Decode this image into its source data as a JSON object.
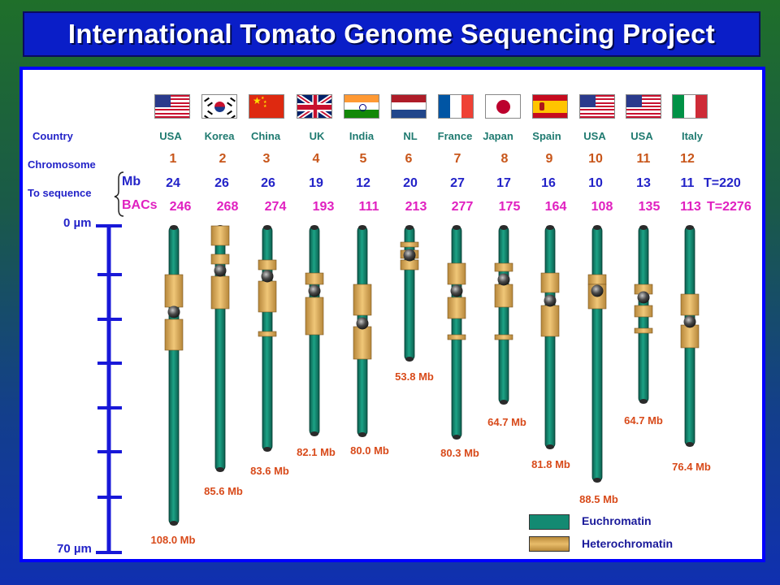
{
  "title": "International Tomato Genome Sequencing Project",
  "row_labels": {
    "country": "Country",
    "chromosome": "Chromosome",
    "to_sequence": "To sequence",
    "mb": "Mb",
    "bacs": "BACs"
  },
  "scale": {
    "top_label": "0 µm",
    "bottom_label": "70 µm",
    "max_um": 70,
    "tick_count": 7
  },
  "legend": {
    "euchromatin": "Euchromatin",
    "heterochromatin": "Heterochromatin"
  },
  "colors": {
    "euchromatin": "#138a72",
    "heterochromatin": "#d9a54f",
    "centromere": "#3a3a3a",
    "scale": "#1818d8"
  },
  "totals": {
    "mb": "T=220",
    "bacs": "T=2276"
  },
  "chromosomes": [
    {
      "country": "USA",
      "flag": "usa-flag",
      "number": "1",
      "mb": "24",
      "bacs": "246",
      "size": "108.0 Mb"
    },
    {
      "country": "Korea",
      "flag": "korea-flag",
      "number": "2",
      "mb": "26",
      "bacs": "268",
      "size": "85.6 Mb"
    },
    {
      "country": "China",
      "flag": "china-flag",
      "number": "3",
      "mb": "26",
      "bacs": "274",
      "size": "83.6 Mb"
    },
    {
      "country": "UK",
      "flag": "uk-flag",
      "number": "4",
      "mb": "19",
      "bacs": "193",
      "size": "82.1 Mb"
    },
    {
      "country": "India",
      "flag": "india-flag",
      "number": "5",
      "mb": "12",
      "bacs": "111",
      "size": "80.0 Mb"
    },
    {
      "country": "NL",
      "flag": "nl-flag",
      "number": "6",
      "mb": "20",
      "bacs": "213",
      "size": "53.8 Mb"
    },
    {
      "country": "France",
      "flag": "france-flag",
      "number": "7",
      "mb": "27",
      "bacs": "277",
      "size": "80.3 Mb"
    },
    {
      "country": "Japan",
      "flag": "japan-flag",
      "number": "8",
      "mb": "17",
      "bacs": "175",
      "size": "64.7 Mb"
    },
    {
      "country": "Spain",
      "flag": "spain-flag",
      "number": "9",
      "mb": "16",
      "bacs": "164",
      "size": "81.8 Mb"
    },
    {
      "country": "USA",
      "flag": "usa-flag",
      "number": "10",
      "mb": "10",
      "bacs": "108",
      "size": "88.5 Mb"
    },
    {
      "country": "USA",
      "flag": "usa-flag",
      "number": "11",
      "mb": "13",
      "bacs": "135",
      "size": "64.7 Mb"
    },
    {
      "country": "Italy",
      "flag": "italy-flag",
      "number": "12",
      "mb": "11",
      "bacs": "113",
      "size": "76.4 Mb"
    }
  ]
}
